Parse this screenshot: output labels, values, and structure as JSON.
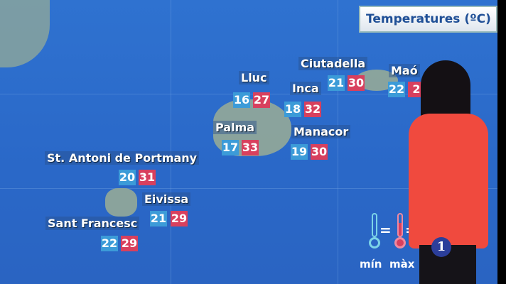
{
  "title": "Temperatures (ºC)",
  "colors": {
    "min": "#3c9bd8",
    "max": "#d8405e",
    "sea": "#2f72d0"
  },
  "cities": [
    {
      "name": "Lluc",
      "min": "16",
      "max": "27"
    },
    {
      "name": "Inca",
      "min": "18",
      "max": "32"
    },
    {
      "name": "Ciutadella",
      "min": "21",
      "max": "30"
    },
    {
      "name": "Maó",
      "min": "22",
      "max": "2"
    },
    {
      "name": "Palma",
      "min": "17",
      "max": "33"
    },
    {
      "name": "Manacor",
      "min": "19",
      "max": "30"
    },
    {
      "name": "St. Antoni de Portmany",
      "min": "20",
      "max": "31"
    },
    {
      "name": "Eivissa",
      "min": "21",
      "max": "29"
    },
    {
      "name": "Sant Francesc",
      "min": "22",
      "max": "29"
    }
  ],
  "legend": {
    "min_label": "mín",
    "max_label": "màx",
    "equals": "="
  },
  "channel_logo": "1"
}
